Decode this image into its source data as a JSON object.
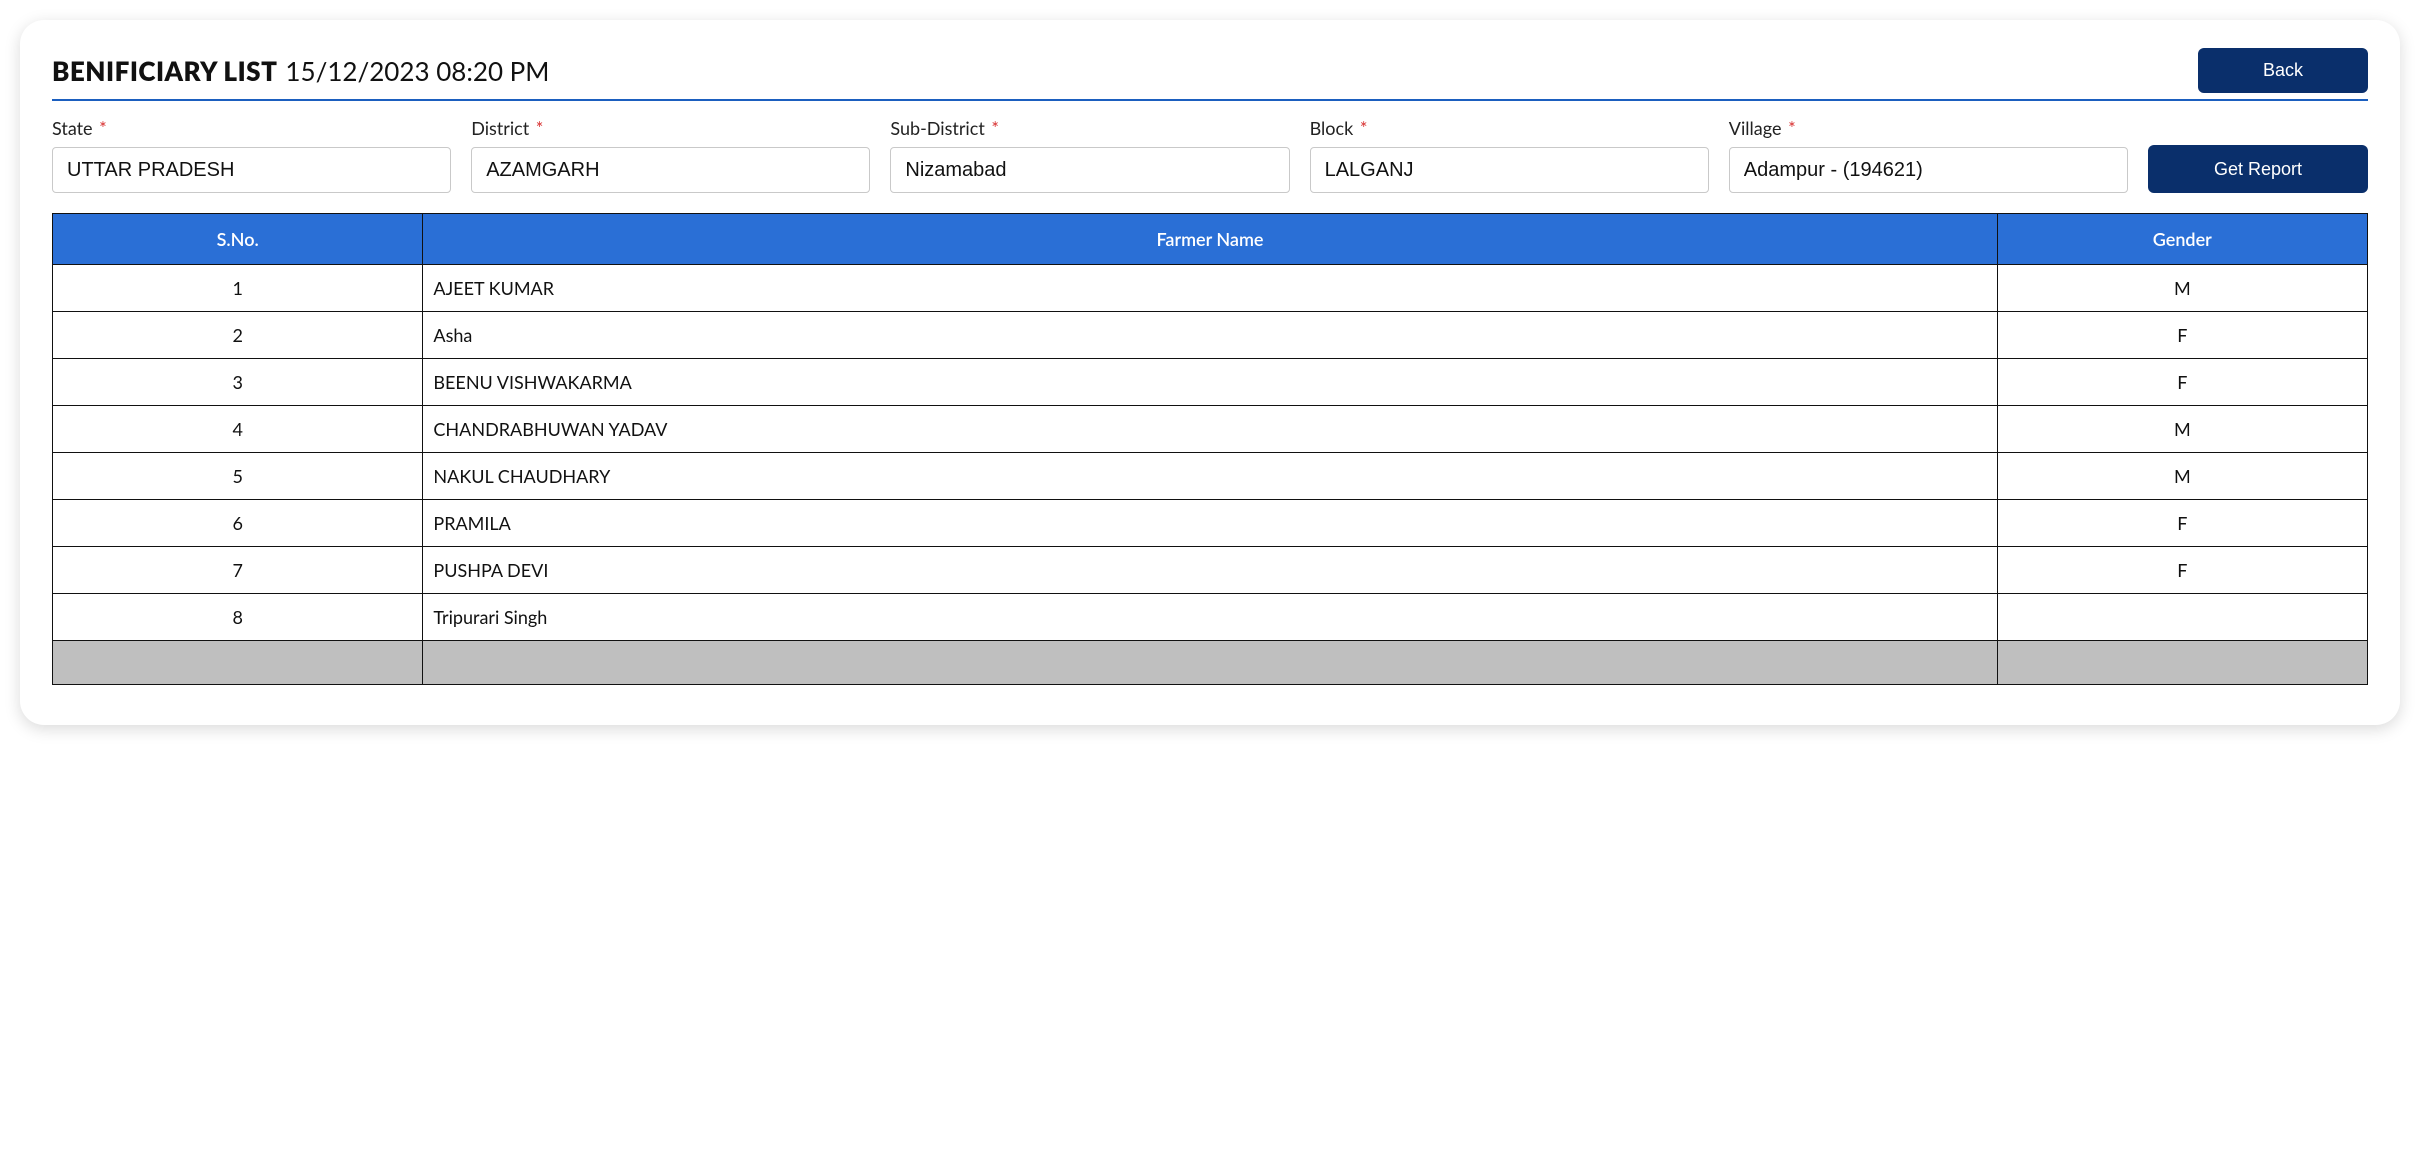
{
  "header": {
    "title": "BENIFICIARY LIST",
    "datetime": "15/12/2023 08:20 PM",
    "back_label": "Back"
  },
  "filters": {
    "state": {
      "label": "State",
      "value": "UTTAR PRADESH"
    },
    "district": {
      "label": "District",
      "value": "AZAMGARH"
    },
    "sub_district": {
      "label": "Sub-District",
      "value": "Nizamabad"
    },
    "block": {
      "label": "Block",
      "value": "LALGANJ"
    },
    "village": {
      "label": "Village",
      "value": "Adampur - (194621)"
    },
    "get_report_label": "Get Report",
    "required_marker": "*"
  },
  "table": {
    "columns": {
      "sno": "S.No.",
      "name": "Farmer Name",
      "gender": "Gender"
    },
    "rows": [
      {
        "sno": "1",
        "name": "AJEET KUMAR",
        "gender": "M"
      },
      {
        "sno": "2",
        "name": "Asha",
        "gender": "F"
      },
      {
        "sno": "3",
        "name": "BEENU VISHWAKARMA",
        "gender": "F"
      },
      {
        "sno": "4",
        "name": "CHANDRABHUWAN YADAV",
        "gender": "M"
      },
      {
        "sno": "5",
        "name": "NAKUL CHAUDHARY",
        "gender": "M"
      },
      {
        "sno": "6",
        "name": "PRAMILA",
        "gender": "F"
      },
      {
        "sno": "7",
        "name": "PUSHPA DEVI",
        "gender": "F"
      },
      {
        "sno": "8",
        "name": "Tripurari Singh",
        "gender": ""
      }
    ]
  },
  "colors": {
    "header_underline": "#1b5fbf",
    "button_dark": "#0a2f6b",
    "table_header_bg": "#2a6fd6",
    "table_border": "#111111",
    "footer_row_bg": "#bfbfbf",
    "required": "#d93636"
  }
}
